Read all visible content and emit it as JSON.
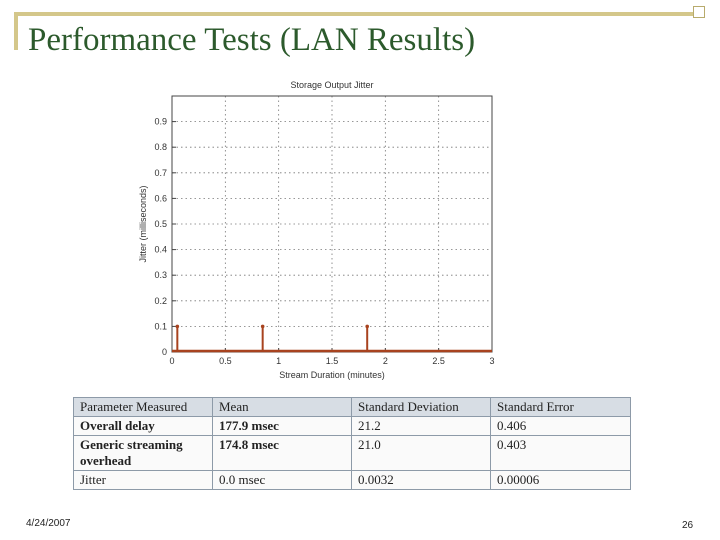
{
  "slide": {
    "title": "Performance Tests (LAN Results)",
    "date": "4/24/2007",
    "page_number": "26"
  },
  "chart_data": {
    "type": "scatter",
    "style": "stem",
    "title": "Storage Output Jitter",
    "xlabel": "Stream Duration (minutes)",
    "ylabel": "Jitter (milliseconds)",
    "xlim": [
      0,
      3
    ],
    "ylim": [
      0,
      1
    ],
    "xticks": [
      "0",
      "0.5",
      "1",
      "1.5",
      "2",
      "2.5",
      "3"
    ],
    "yticks": [
      "0",
      "0.1",
      "0.2",
      "0.3",
      "0.4",
      "0.5",
      "0.6",
      "0.7",
      "0.8",
      "0.9"
    ],
    "grid": true,
    "points": [
      {
        "x": 0.05,
        "y": 0.1
      },
      {
        "x": 0.85,
        "y": 0.1
      },
      {
        "x": 1.83,
        "y": 0.1
      }
    ],
    "color": "#a8431f"
  },
  "table": {
    "headers": [
      "Parameter Measured",
      "Mean",
      "Standard Deviation",
      "Standard Error"
    ],
    "rows": [
      [
        "Overall delay",
        "177.9  msec",
        "21.2",
        "0.406"
      ],
      [
        "Generic streaming overhead",
        "174.8 msec",
        "21.0",
        "0.403"
      ],
      [
        "Jitter",
        "0.0 msec",
        "0.0032",
        "0.00006"
      ]
    ]
  }
}
